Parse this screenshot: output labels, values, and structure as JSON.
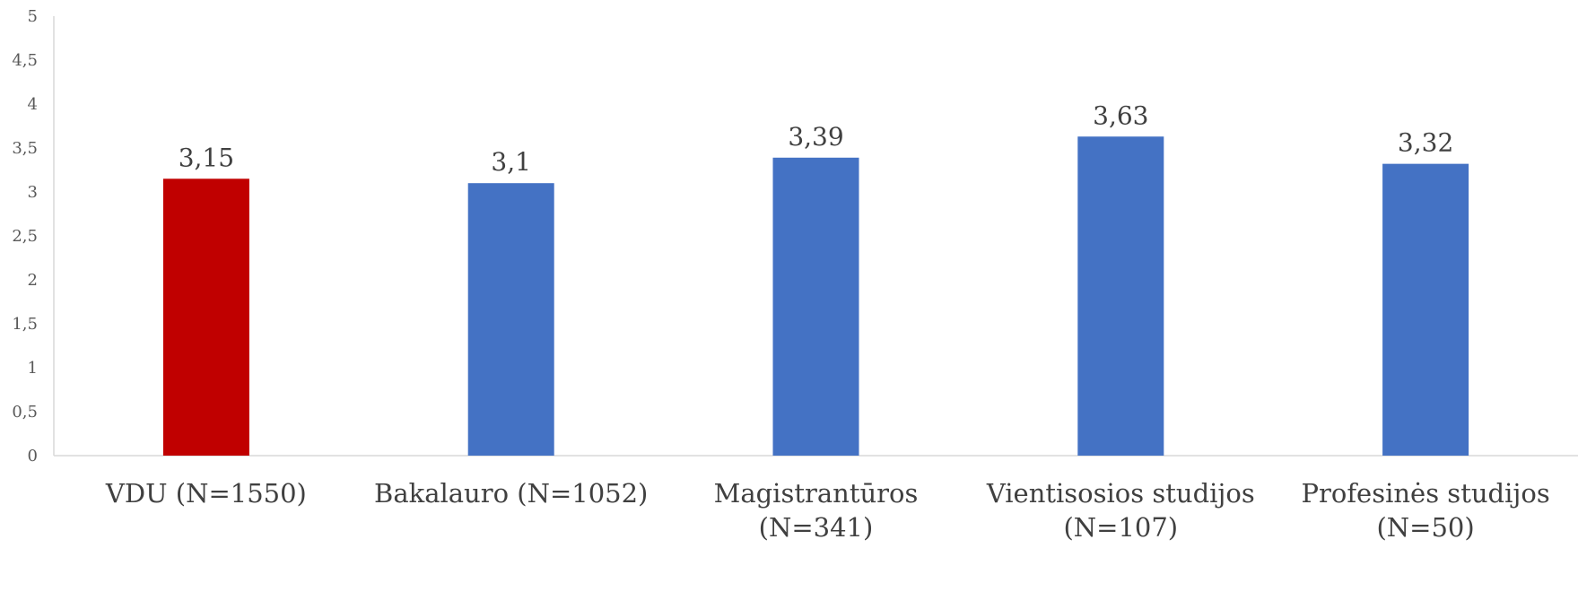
{
  "chart_data": {
    "type": "bar",
    "title": "",
    "xlabel": "",
    "ylabel": "",
    "ylim": [
      0,
      5
    ],
    "yticks": [
      "0",
      "0,5",
      "1",
      "1,5",
      "2",
      "2,5",
      "3",
      "3,5",
      "4",
      "4,5",
      "5"
    ],
    "grid": false,
    "legend": "none",
    "categories": [
      [
        "VDU (N=1550)"
      ],
      [
        "Bakalauro (N=1052)"
      ],
      [
        "Magistrantūros",
        "(N=341)"
      ],
      [
        "Vientisosios studijos",
        "(N=107)"
      ],
      [
        "Profesinės studijos",
        "(N=50)"
      ]
    ],
    "values": [
      3.15,
      3.1,
      3.39,
      3.63,
      3.32
    ],
    "value_labels": [
      "3,15",
      "3,1",
      "3,39",
      "3,63",
      "3,32"
    ],
    "colors": [
      "#c00000",
      "#4472c4",
      "#4472c4",
      "#4472c4",
      "#4472c4"
    ]
  }
}
